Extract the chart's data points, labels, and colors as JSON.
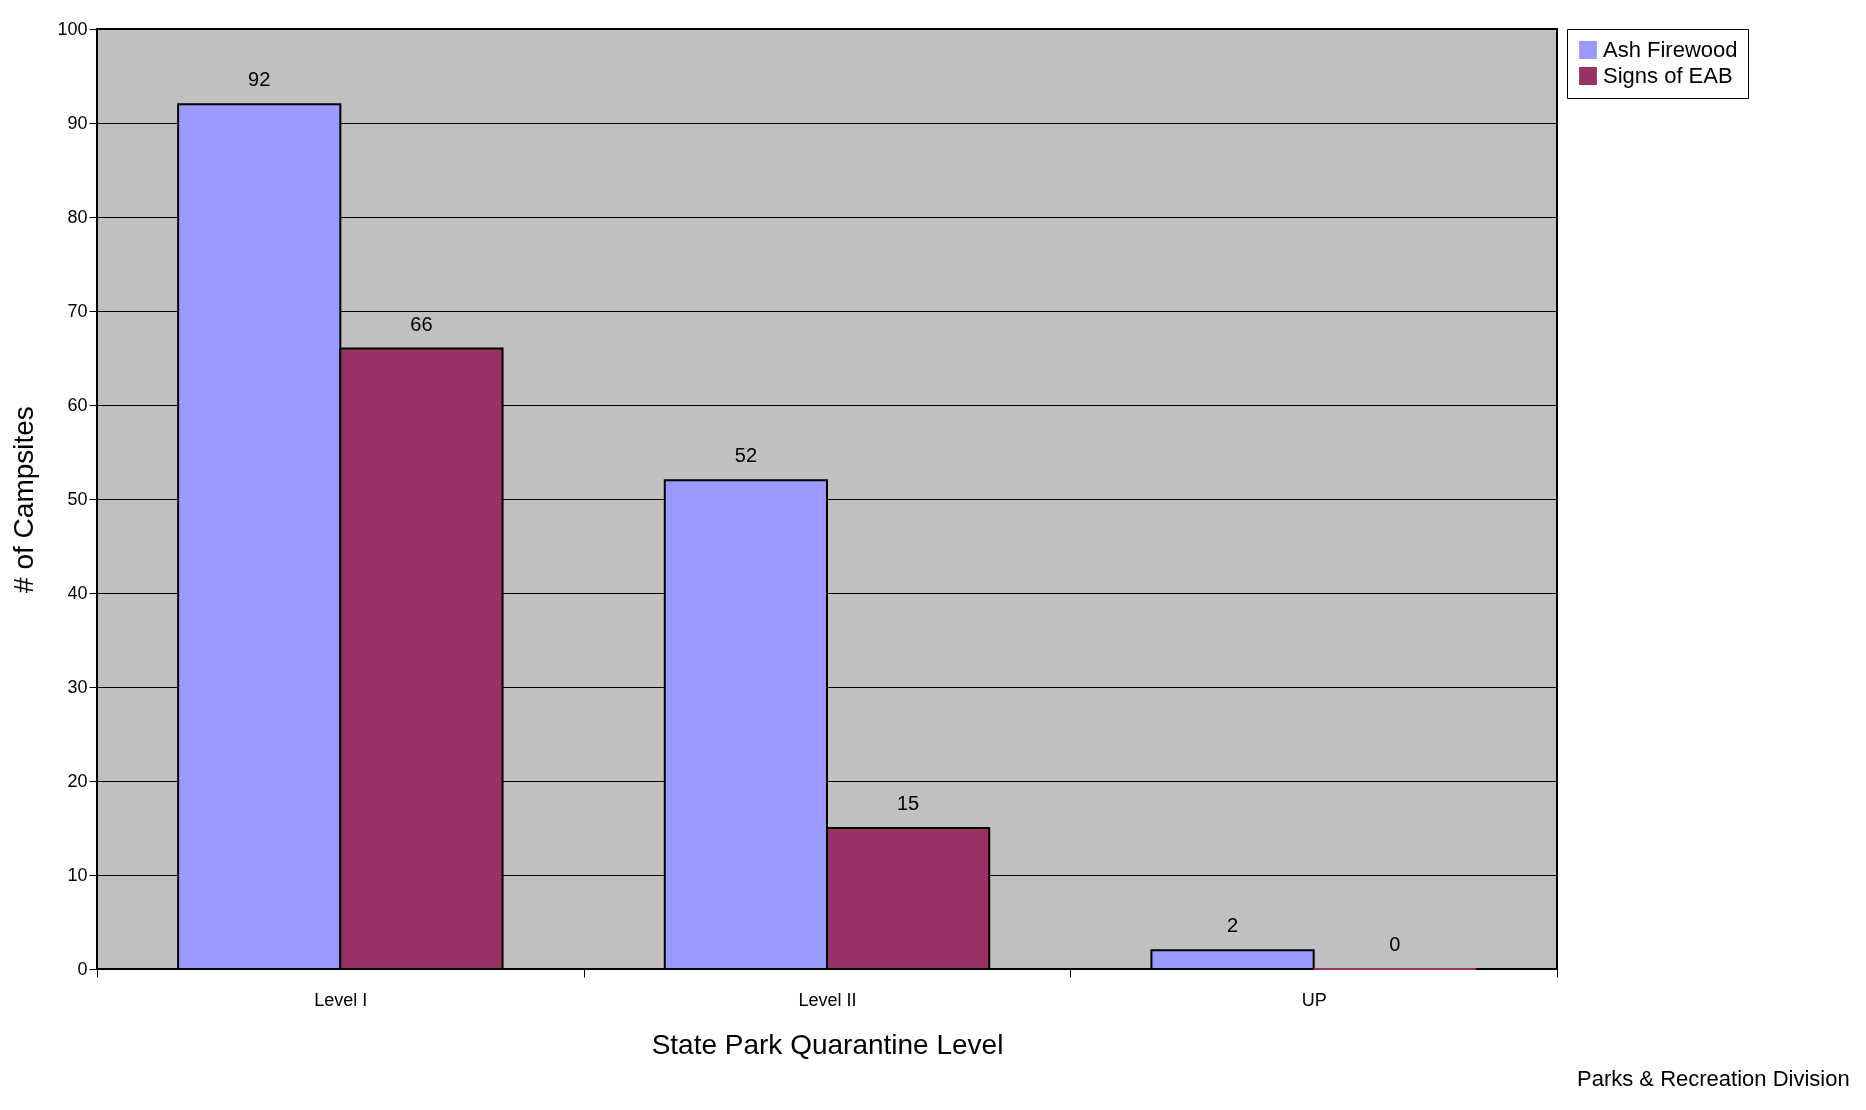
{
  "chart_data": {
    "type": "bar",
    "xlabel": "State Park Quarantine Level",
    "ylabel": "# of Campsites",
    "categories": [
      "Level I",
      "Level II",
      "UP"
    ],
    "series": [
      {
        "name": "Ash Firewood",
        "color": "#9999ff",
        "values": [
          92,
          52,
          2
        ]
      },
      {
        "name": "Signs of EAB",
        "color": "#993366",
        "values": [
          66,
          15,
          0
        ]
      }
    ],
    "ylim": [
      0,
      100
    ],
    "yticks": [
      0,
      10,
      20,
      30,
      40,
      50,
      60,
      70,
      80,
      90,
      100
    ],
    "grid": "y",
    "legend": "right",
    "data_labels": true,
    "annotations": [
      "Parks & Recreation Division"
    ]
  }
}
